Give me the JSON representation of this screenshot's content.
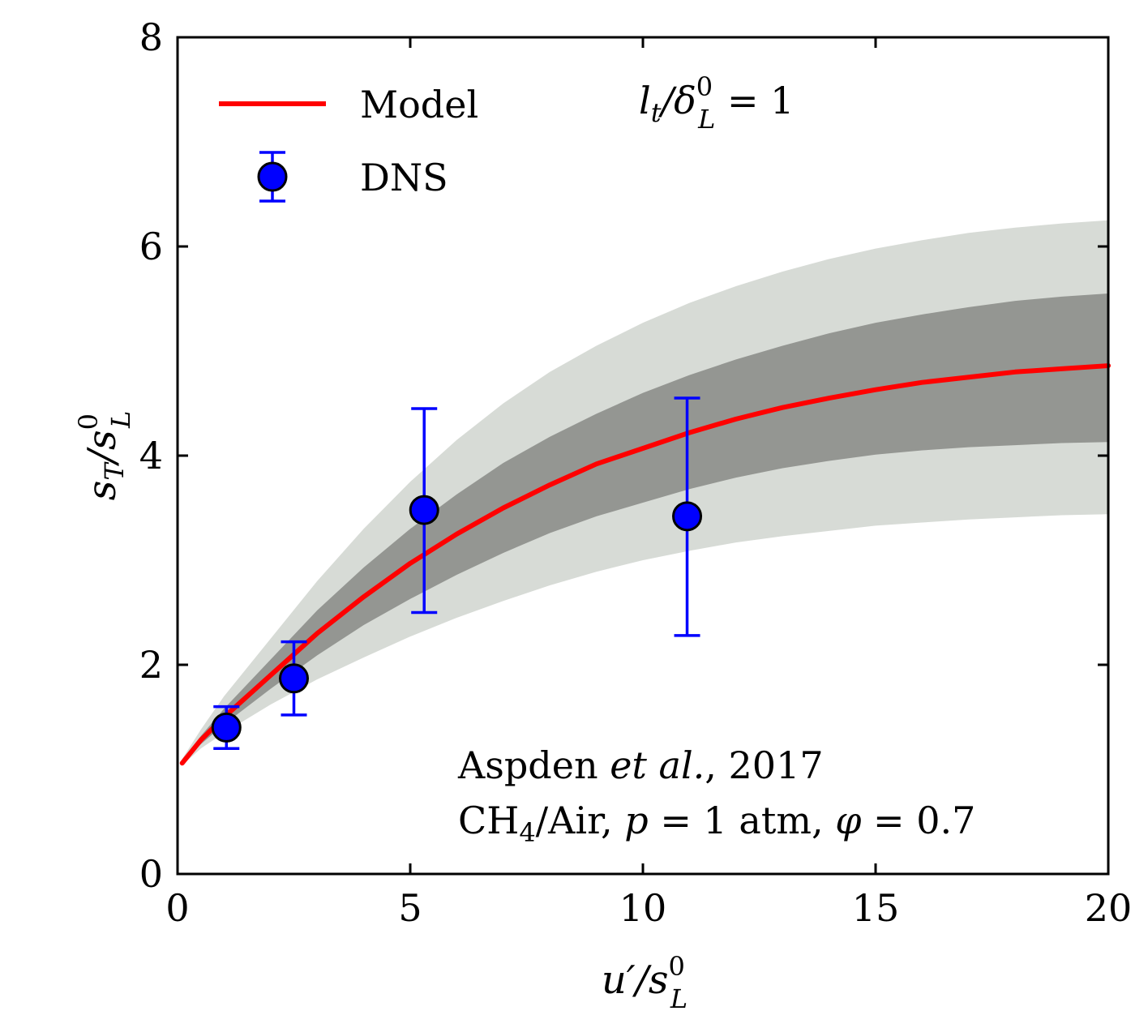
{
  "chart_data": {
    "type": "line",
    "xlabel": "u′/s",
    "xlabel_sup": "0",
    "xlabel_sub": "L",
    "ylabel": "s",
    "ylabel_sub1": "T",
    "ylabel_mid": "/s",
    "ylabel_sup": "0",
    "ylabel_sub2": "L",
    "xlim": [
      0,
      20
    ],
    "ylim": [
      0,
      8
    ],
    "x_ticks": [
      0,
      5,
      10,
      15,
      20
    ],
    "y_ticks": [
      0,
      2,
      4,
      6,
      8
    ],
    "x_tick_labels": [
      "0",
      "5",
      "10",
      "15",
      "20"
    ],
    "y_tick_labels": [
      "0",
      "2",
      "4",
      "6",
      "8"
    ],
    "grid": false,
    "legend_position": "top-left",
    "series": [
      {
        "name": "Model",
        "color": "#ff0000",
        "x": [
          0.1,
          0.5,
          1,
          2,
          3,
          4,
          5,
          6,
          7,
          8,
          9,
          10,
          11,
          12,
          13,
          14,
          15,
          16,
          17,
          18,
          19,
          20
        ],
        "y": [
          1.06,
          1.28,
          1.5,
          1.9,
          2.3,
          2.65,
          2.97,
          3.25,
          3.5,
          3.72,
          3.92,
          4.07,
          4.22,
          4.35,
          4.46,
          4.55,
          4.63,
          4.7,
          4.75,
          4.8,
          4.83,
          4.86
        ]
      },
      {
        "name": "DNS",
        "color": "#0000ff",
        "x": [
          1.05,
          2.5,
          5.3,
          10.95
        ],
        "y": [
          1.4,
          1.87,
          3.48,
          3.42
        ],
        "y_lower": [
          1.2,
          1.52,
          2.5,
          2.28
        ],
        "y_upper": [
          1.6,
          2.22,
          4.45,
          4.55
        ]
      }
    ],
    "bands": [
      {
        "color": "#d7dbd6",
        "x": [
          0.1,
          0.5,
          1,
          2,
          3,
          4,
          5,
          6,
          7,
          8,
          9,
          10,
          11,
          12,
          13,
          14,
          15,
          16,
          17,
          18,
          19,
          20
        ],
        "lower": [
          1.04,
          1.2,
          1.35,
          1.62,
          1.86,
          2.07,
          2.27,
          2.45,
          2.61,
          2.76,
          2.89,
          3.0,
          3.09,
          3.17,
          3.23,
          3.28,
          3.33,
          3.36,
          3.39,
          3.41,
          3.43,
          3.44
        ],
        "upper": [
          1.1,
          1.38,
          1.7,
          2.25,
          2.8,
          3.3,
          3.75,
          4.15,
          4.5,
          4.8,
          5.05,
          5.27,
          5.46,
          5.62,
          5.76,
          5.88,
          5.98,
          6.06,
          6.13,
          6.18,
          6.22,
          6.25
        ]
      },
      {
        "color": "#949692",
        "x": [
          0.1,
          0.5,
          1,
          2,
          3,
          4,
          5,
          6,
          7,
          8,
          9,
          10,
          11,
          12,
          13,
          14,
          15,
          16,
          17,
          18,
          19,
          20
        ],
        "lower": [
          1.05,
          1.24,
          1.43,
          1.77,
          2.09,
          2.38,
          2.63,
          2.86,
          3.07,
          3.26,
          3.42,
          3.55,
          3.68,
          3.79,
          3.88,
          3.95,
          4.01,
          4.05,
          4.08,
          4.1,
          4.12,
          4.13
        ],
        "upper": [
          1.08,
          1.32,
          1.58,
          2.05,
          2.52,
          2.93,
          3.3,
          3.63,
          3.93,
          4.18,
          4.4,
          4.6,
          4.77,
          4.92,
          5.05,
          5.17,
          5.27,
          5.35,
          5.42,
          5.48,
          5.52,
          5.55
        ]
      }
    ],
    "annotations": {
      "lt_var": "l",
      "lt_sub": "t",
      "lt_mid": "/δ",
      "lt_sup": "0",
      "lt_sub2": "L",
      "lt_eq": " = 1",
      "source_name": "Aspden ",
      "source_etal": "et al.",
      "source_year": ", 2017",
      "cond_a": "CH",
      "cond_sub": "4",
      "cond_b": "/Air, ",
      "cond_p": "p",
      "cond_c": " = 1 atm, ",
      "cond_phi": "φ",
      "cond_d": " = 0.7"
    }
  }
}
